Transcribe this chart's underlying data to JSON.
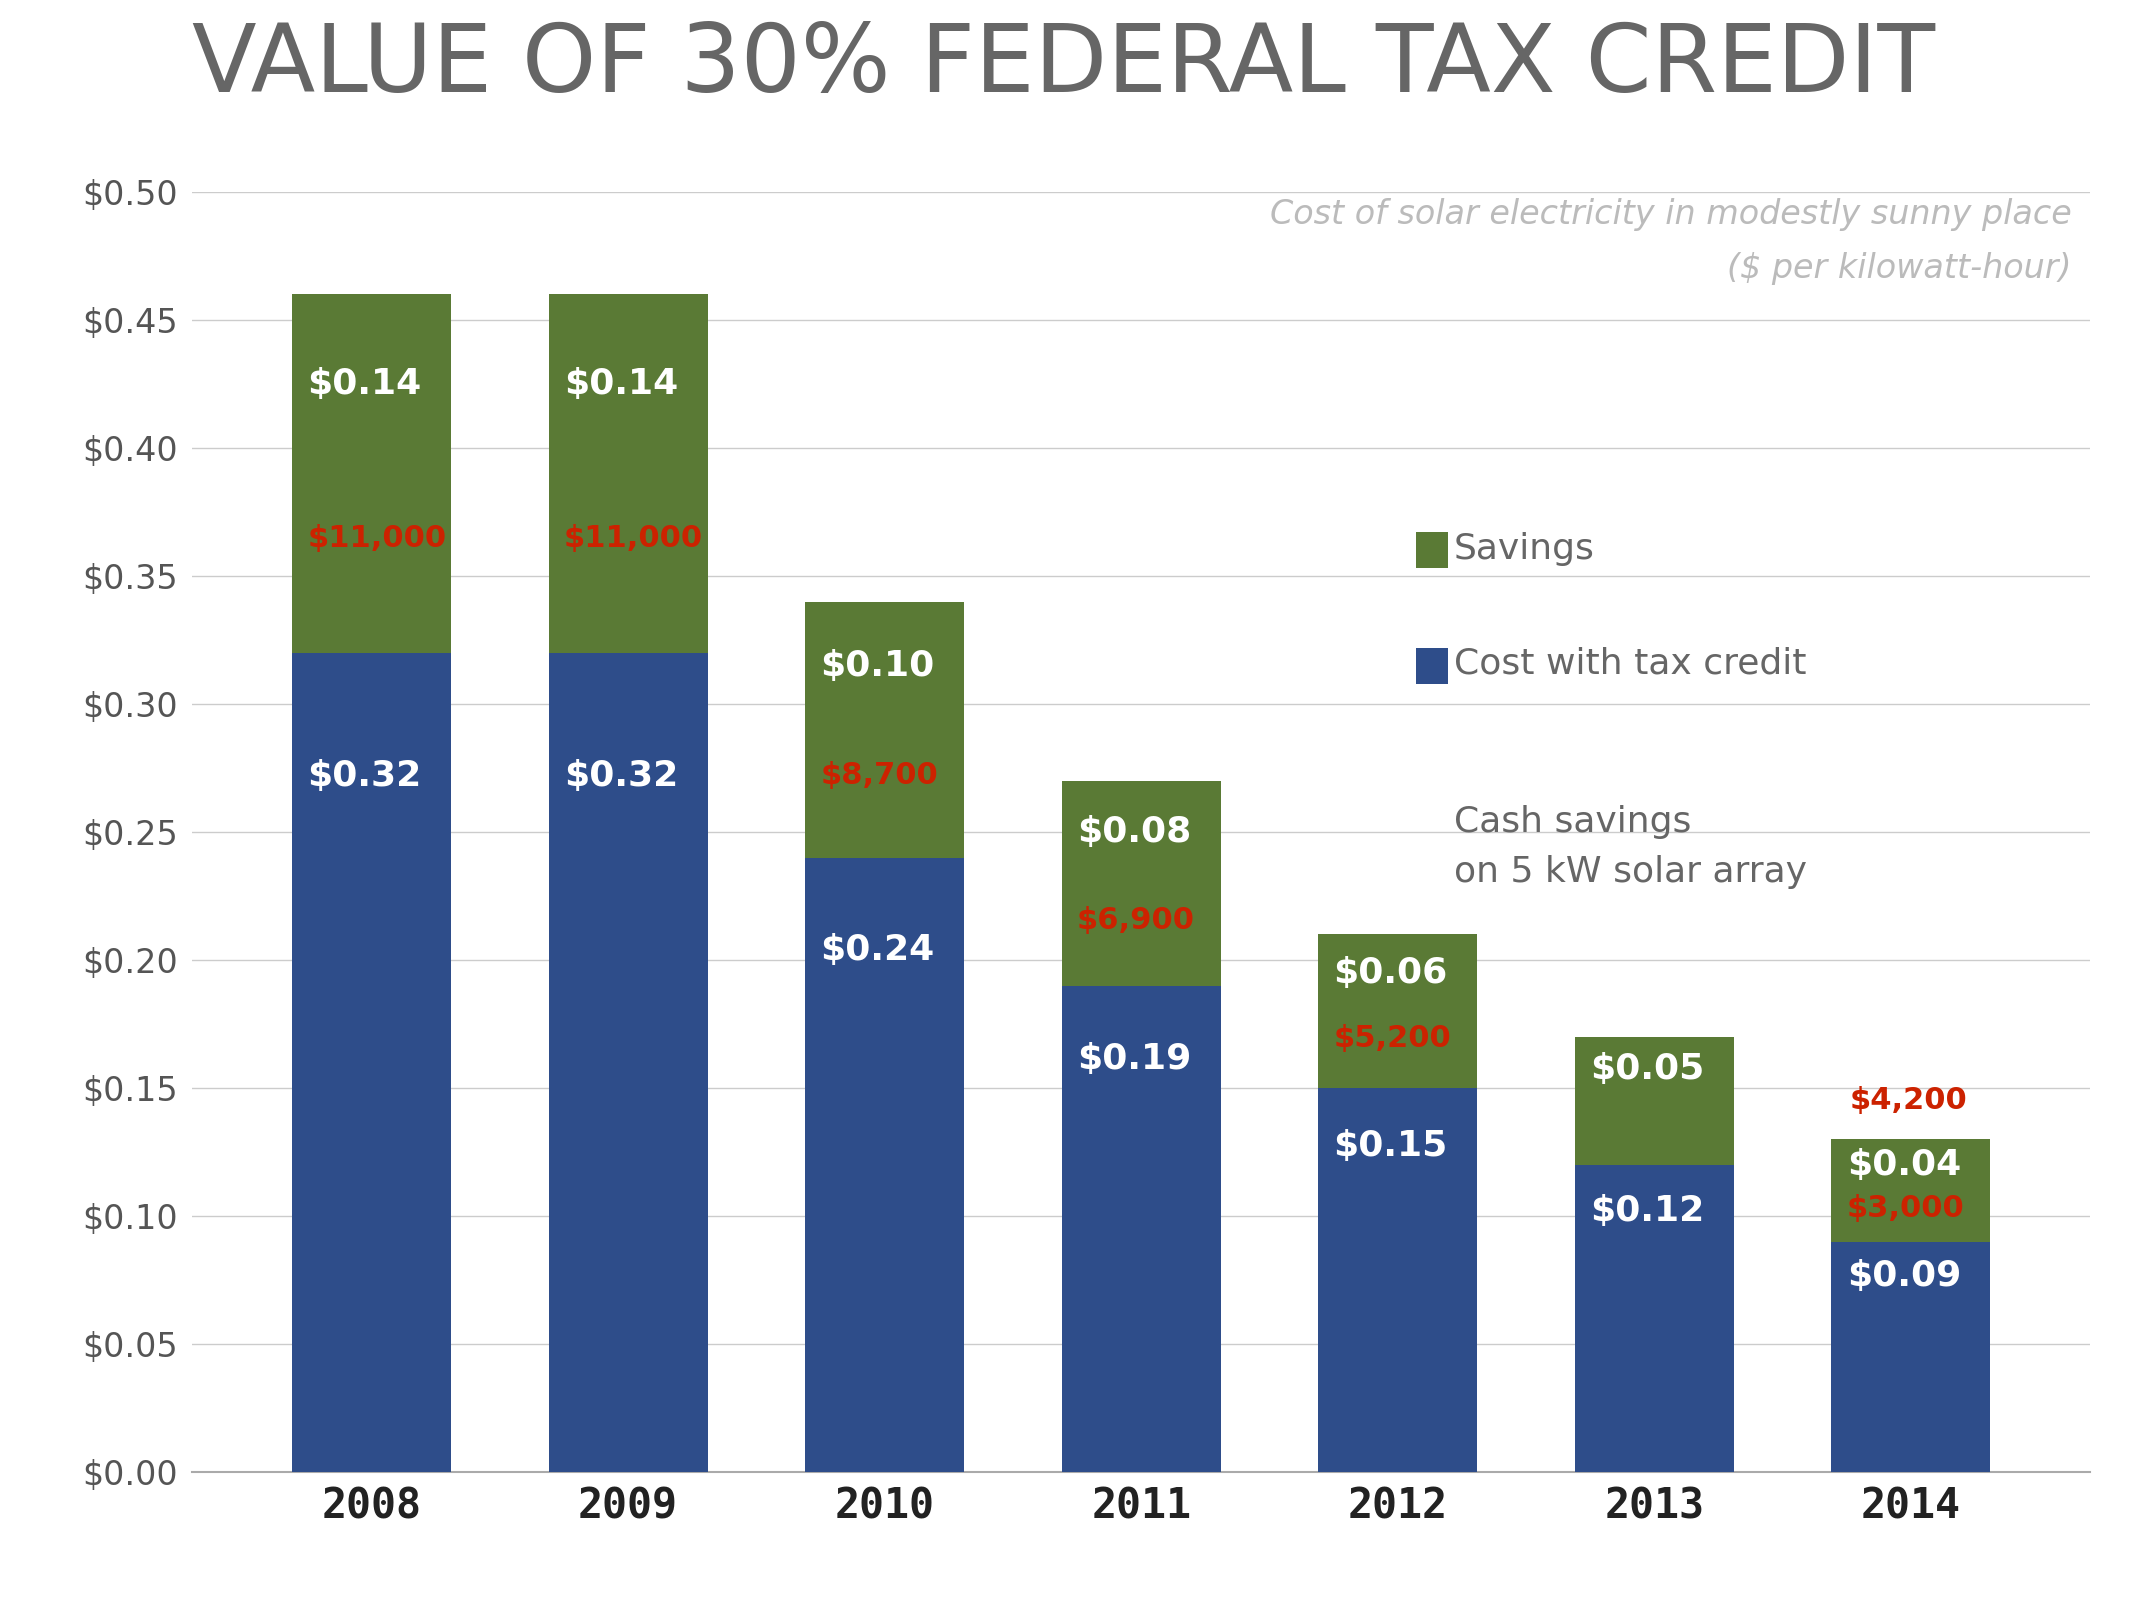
{
  "title": "VALUE OF 30% FEDERAL TAX CREDIT",
  "subtitle_line1": "Cost of solar electricity in modestly sunny place",
  "subtitle_line2": "($ per kilowatt-hour)",
  "years": [
    "2008",
    "2009",
    "2010",
    "2011",
    "2012",
    "2013",
    "2014"
  ],
  "cost_with_credit": [
    0.32,
    0.32,
    0.24,
    0.19,
    0.15,
    0.12,
    0.09
  ],
  "savings": [
    0.14,
    0.14,
    0.1,
    0.08,
    0.06,
    0.05,
    0.04
  ],
  "cash_savings": [
    "$11,000",
    "$11,000",
    "$8,700",
    "$6,900",
    "$5,200",
    "$4,200",
    "$3,000"
  ],
  "cost_color": "#2E4D8A",
  "savings_color": "#5A7A35",
  "cash_color": "#CC2200",
  "title_color": "#666666",
  "subtitle_color": "#BBBBBB",
  "legend_text_color": "#666666",
  "tick_color": "#555555",
  "background_color": "#FFFFFF",
  "ylim": [
    0,
    0.5
  ],
  "yticks": [
    0.0,
    0.05,
    0.1,
    0.15,
    0.2,
    0.25,
    0.3,
    0.35,
    0.4,
    0.45,
    0.5
  ],
  "bar_width": 0.62,
  "grid_color": "#CCCCCC"
}
